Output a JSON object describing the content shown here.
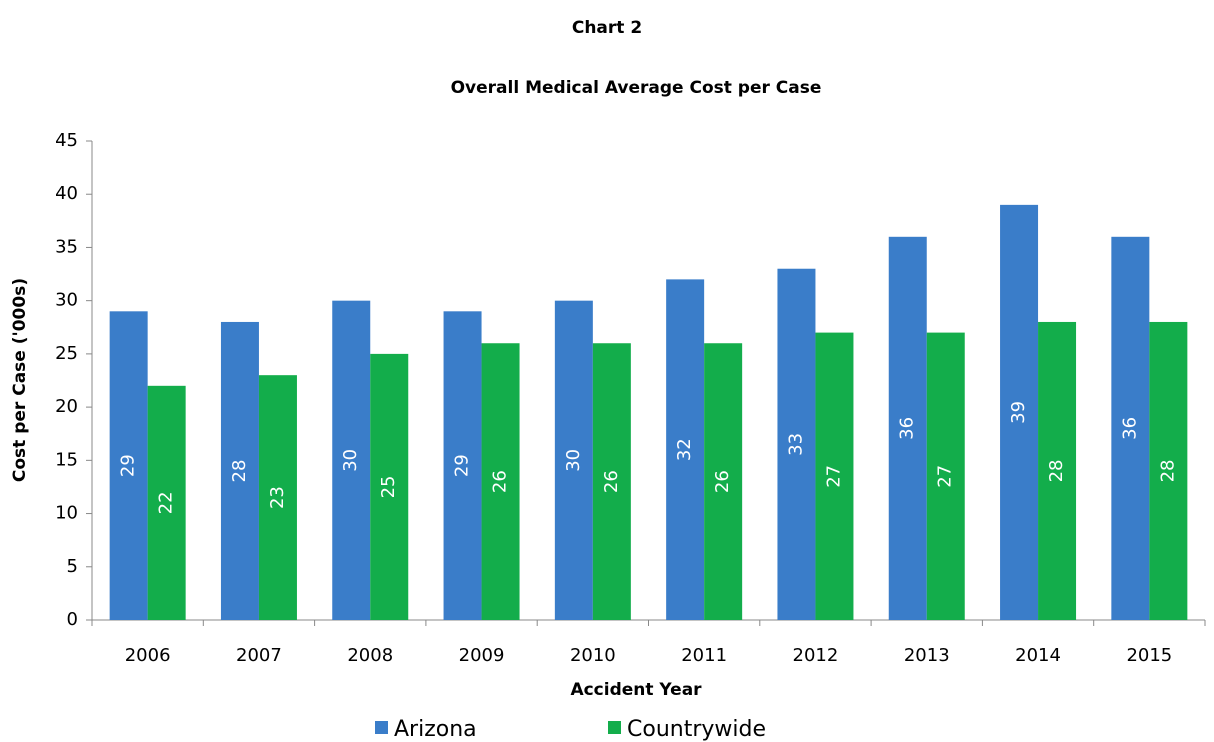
{
  "chart_data": {
    "type": "bar",
    "title": "Chart 2",
    "subtitle": "Overall Medical Average Cost per Case",
    "x_label": "Accident Year",
    "y_label": "Cost per Case ('000s)",
    "categories": [
      "2006",
      "2007",
      "2008",
      "2009",
      "2010",
      "2011",
      "2012",
      "2013",
      "2014",
      "2015"
    ],
    "series": [
      {
        "name": "Arizona",
        "color": "#3a7dc9",
        "values": [
          29,
          28,
          30,
          29,
          30,
          32,
          33,
          36,
          39,
          36
        ]
      },
      {
        "name": "Countrywide",
        "color": "#13ad4b",
        "values": [
          22,
          23,
          25,
          26,
          26,
          26,
          27,
          27,
          28,
          28
        ]
      }
    ],
    "ylim": [
      0,
      45
    ],
    "yticks": [
      0,
      5,
      10,
      15,
      20,
      25,
      30,
      35,
      40,
      45
    ],
    "grid": false,
    "legend": "bottom"
  }
}
